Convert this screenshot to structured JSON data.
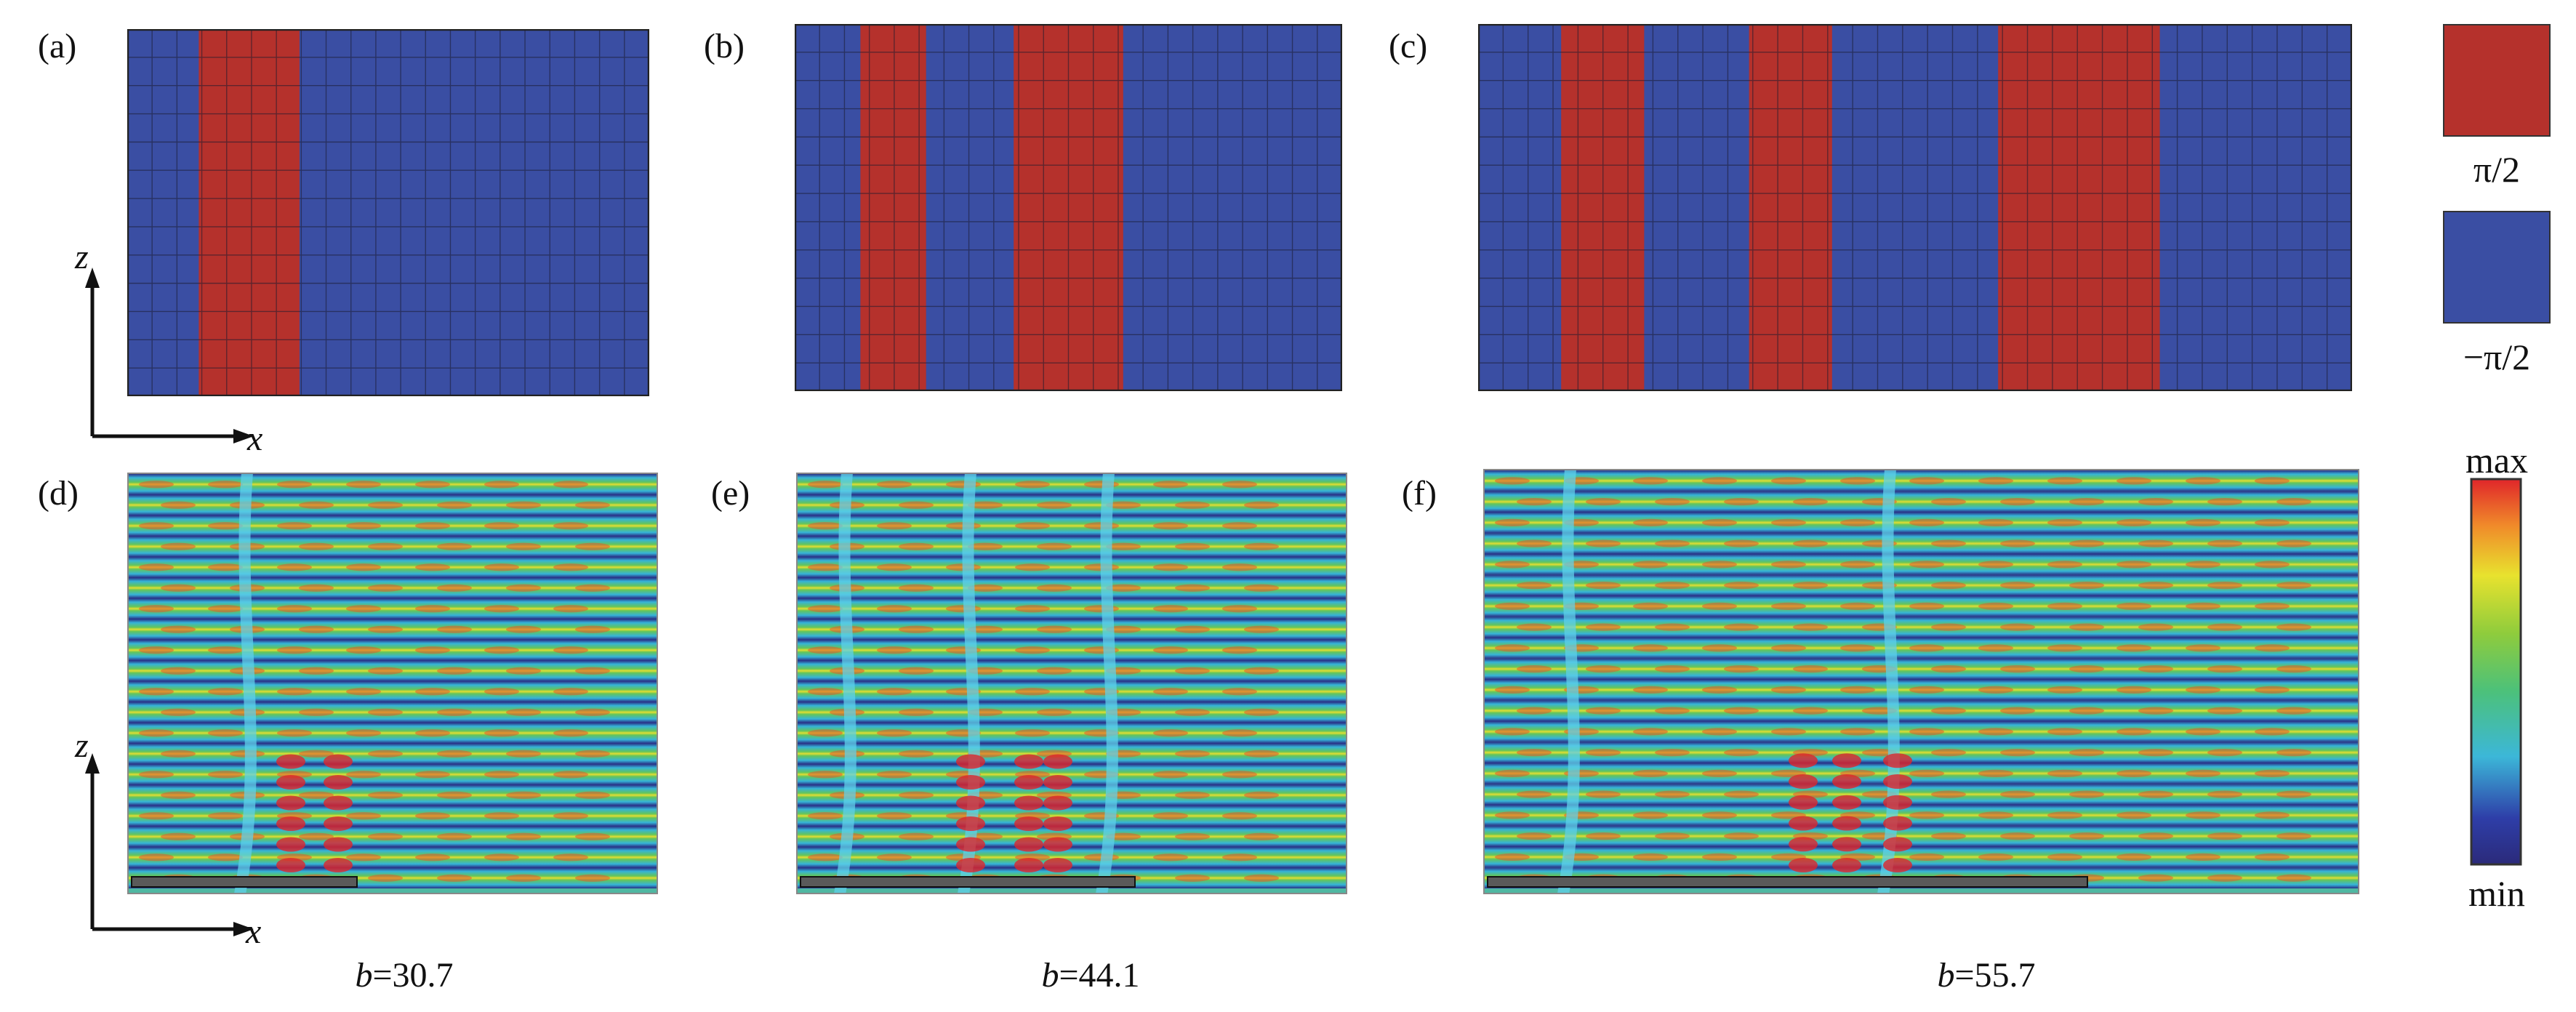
{
  "colors": {
    "phase_pos": "#b5312c",
    "phase_neg": "#3a4ea3",
    "grid_line": "#1a1a2e"
  },
  "panels": {
    "a": {
      "label": "(a)"
    },
    "b": {
      "label": "(b)"
    },
    "c": {
      "label": "(c)"
    },
    "d": {
      "label": "(d)"
    },
    "e": {
      "label": "(e)"
    },
    "f": {
      "label": "(f)"
    }
  },
  "axes": {
    "z_label": "z",
    "x_label": "x"
  },
  "captions": [
    {
      "prefix": "b",
      "value": "=30.7"
    },
    {
      "prefix": "b",
      "value": "=44.1"
    },
    {
      "prefix": "b",
      "value": "=55.7"
    }
  ],
  "legend": {
    "phase_pos_label": "π/2",
    "phase_neg_label": "−π/2",
    "colorbar_max": "max",
    "colorbar_min": "min"
  }
}
